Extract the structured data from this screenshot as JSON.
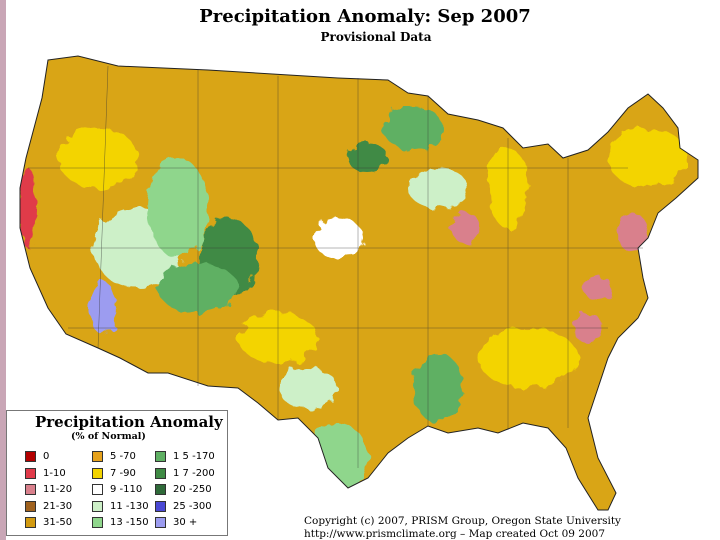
{
  "header": {
    "title": "Precipitation Anomaly: Sep 2007",
    "subtitle": "Provisional Data"
  },
  "legend": {
    "title": "Precipitation Anomaly",
    "subtitle": "(% of Normal)",
    "items": [
      {
        "label": "0",
        "color": "#b30000"
      },
      {
        "label": "1-10",
        "color": "#e03a4a"
      },
      {
        "label": "11-20",
        "color": "#d9808c"
      },
      {
        "label": "21-30",
        "color": "#a0621e"
      },
      {
        "label": "31-50",
        "color": "#d29a10"
      },
      {
        "label": "5 -70",
        "color": "#e6a21c"
      },
      {
        "label": "7 -90",
        "color": "#f3d400"
      },
      {
        "label": "9 -110",
        "color": "#ffffff"
      },
      {
        "label": "11 -130",
        "color": "#cdf0c8"
      },
      {
        "label": "13 -150",
        "color": "#8fd68c"
      },
      {
        "label": "1 5 -170",
        "color": "#5fb063"
      },
      {
        "label": "1 7 -200",
        "color": "#3f8a44"
      },
      {
        "label": "20 -250",
        "color": "#2f6a39"
      },
      {
        "label": "25 -300",
        "color": "#4a48d4"
      },
      {
        "label": "30 +",
        "color": "#9c9cf0"
      }
    ]
  },
  "footer": {
    "copyright": "Copyright (c) 2007, PRISM Group, Oregon State University",
    "url_line": "http://www.prismclimate.org  –  Map created Oct 09 2007"
  }
}
